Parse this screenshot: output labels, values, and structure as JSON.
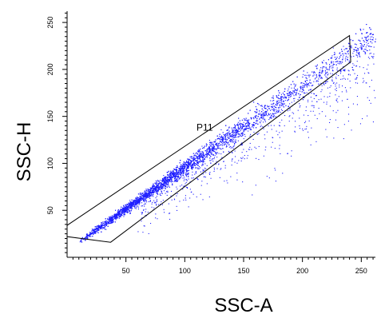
{
  "chart_data": {
    "type": "scatter",
    "xlabel": "SSC-A",
    "ylabel": "SSC-H",
    "xlim": [
      0,
      262
    ],
    "ylim": [
      0,
      262
    ],
    "xticks": [
      50,
      100,
      150,
      200,
      250
    ],
    "yticks": [
      50,
      100,
      150,
      200,
      250
    ],
    "point_color": "#1f1fff",
    "distribution": {
      "main_band": {
        "x_range": [
          10,
          262
        ],
        "slope_y_per_x": 0.88,
        "intercept_y": 8
      },
      "lower_spread": {
        "x_range": [
          60,
          262
        ],
        "y_range": [
          30,
          200
        ]
      }
    },
    "gate": {
      "label": "P11",
      "vertices": [
        [
          0,
          34
        ],
        [
          0,
          22
        ],
        [
          37,
          16
        ],
        [
          241,
          208
        ],
        [
          240,
          236
        ]
      ]
    }
  }
}
